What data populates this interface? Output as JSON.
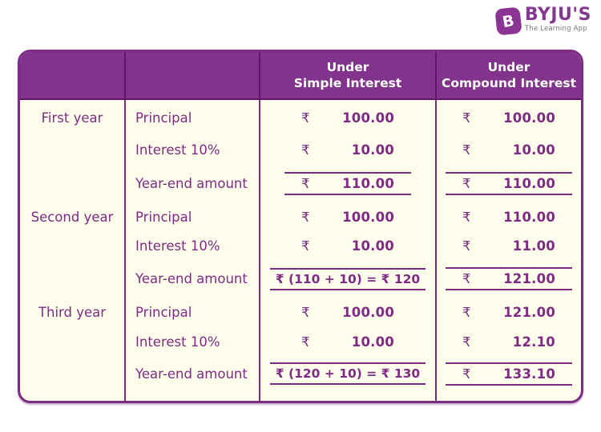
{
  "brand": {
    "name": "BYJU'S",
    "tagline": "The Learning App",
    "icon_letter": "B"
  },
  "chart_data": {
    "type": "table",
    "columns": [
      "",
      "",
      "Under Simple Interest",
      "Under Compound Interest"
    ],
    "header_lines": {
      "col3": [
        "Under",
        "Simple Interest"
      ],
      "col4": [
        "Under",
        "Compound Interest"
      ]
    },
    "currency": "₹",
    "years": [
      {
        "label": "First year",
        "rows": [
          {
            "item": "Principal",
            "si_value": "100.00",
            "ci_value": "100.00"
          },
          {
            "item": "Interest 10%",
            "si_value": "10.00",
            "ci_value": "10.00"
          },
          {
            "item": "Year-end amount",
            "si_total_value": "110.00",
            "ci_total_value": "110.00"
          }
        ]
      },
      {
        "label": "Second year",
        "rows": [
          {
            "item": "Principal",
            "si_value": "100.00",
            "ci_value": "110.00"
          },
          {
            "item": "Interest 10%",
            "si_value": "10.00",
            "ci_value": "11.00"
          },
          {
            "item": "Year-end amount",
            "si_total_expression": "₹ (110 + 10) = ₹ 120",
            "ci_total_value": "121.00"
          }
        ]
      },
      {
        "label": "Third year",
        "rows": [
          {
            "item": "Principal",
            "si_value": "100.00",
            "ci_value": "121.00"
          },
          {
            "item": "Interest 10%",
            "si_value": "10.00",
            "ci_value": "12.10"
          },
          {
            "item": "Year-end amount",
            "si_total_expression": "₹ (120 + 10) = ₹ 130",
            "ci_total_value": "133.10"
          }
        ]
      }
    ]
  },
  "colors": {
    "header_bg": "#82338B",
    "header_divider": "#5E1766",
    "body_divider": "#7C2D83",
    "outer_border": "#7C2D83",
    "text_purple": "#7D2B84",
    "body_bg": "#FFFDEC",
    "logo_purple": "#8C3494",
    "tagline_gray": "#77787B"
  }
}
